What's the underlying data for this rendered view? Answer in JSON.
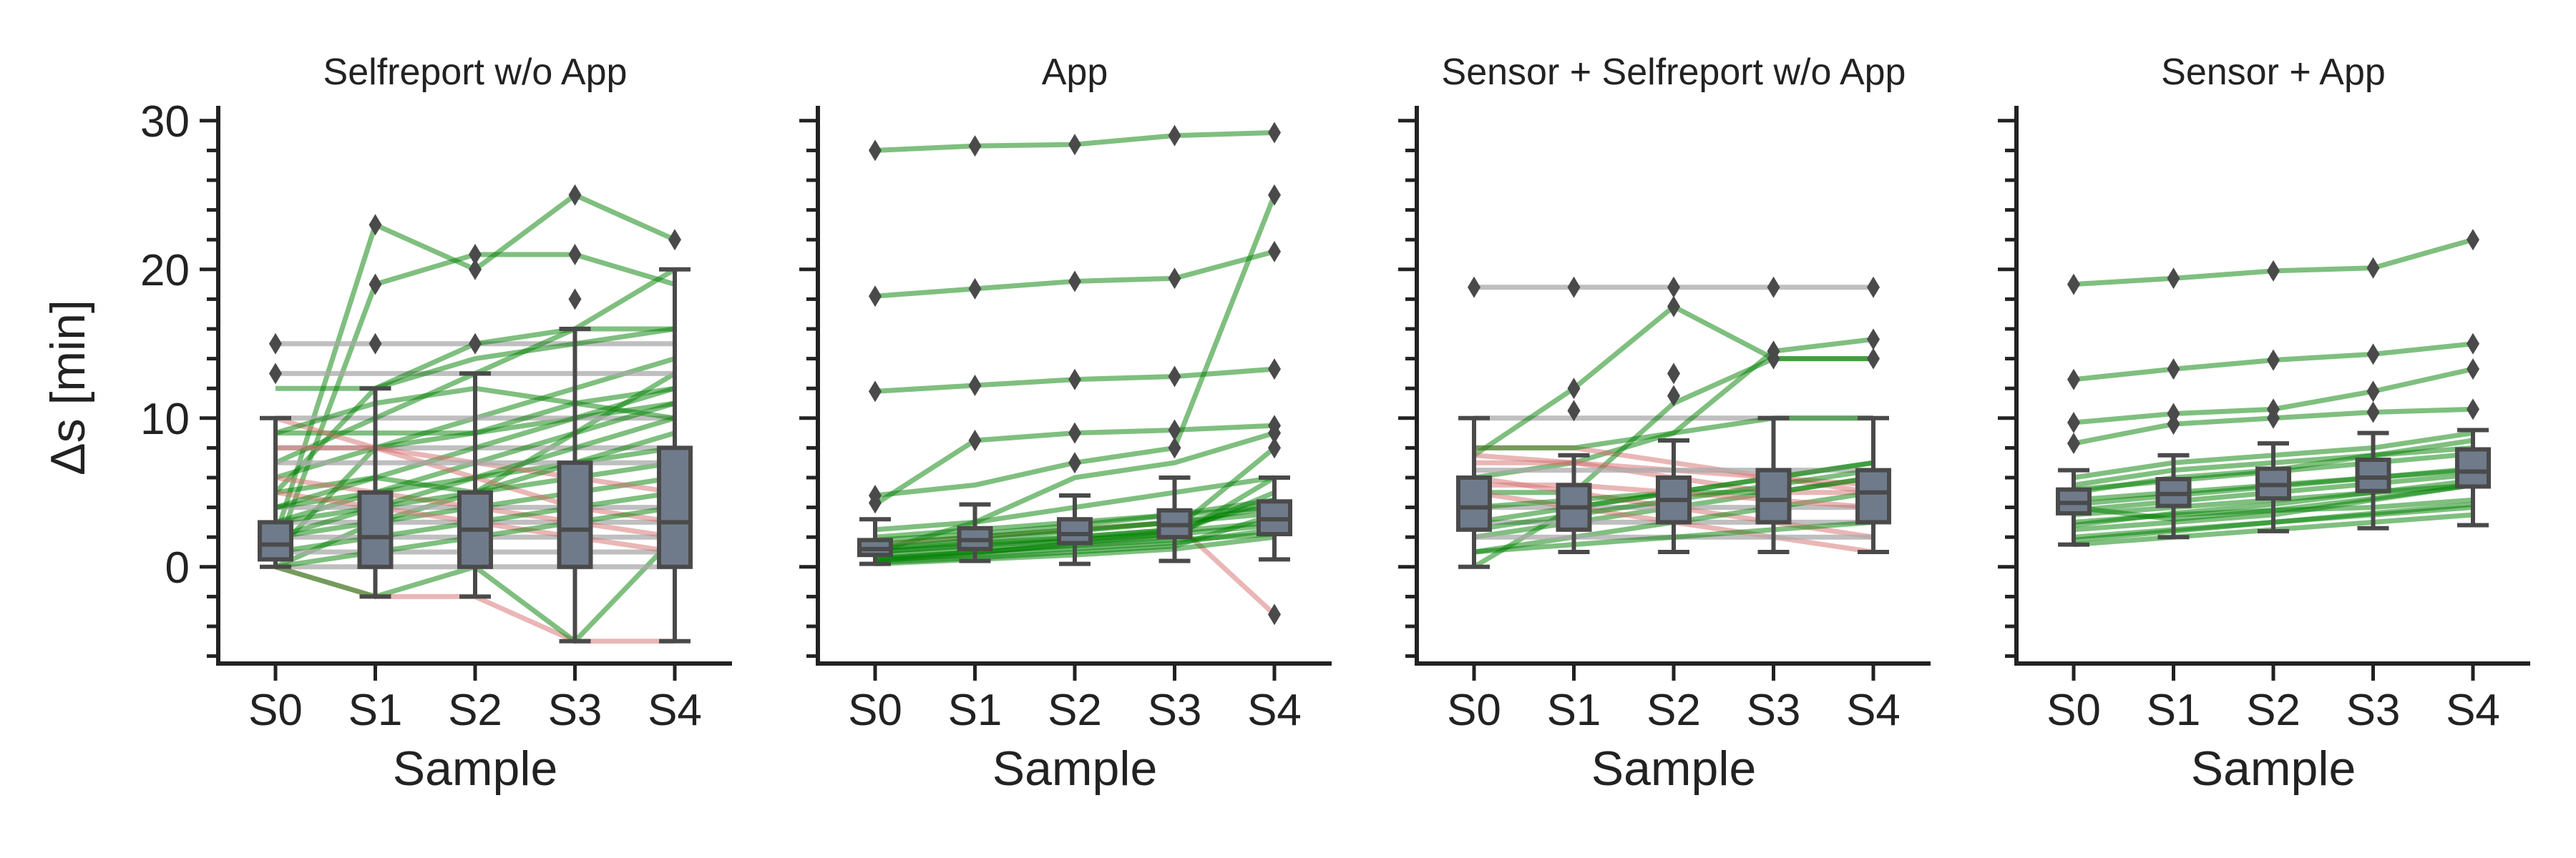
{
  "chart_data": {
    "type": "line",
    "ylabel": "Δs [min]",
    "ylim": [
      -6.5,
      31
    ],
    "yticks": [
      0,
      10,
      20,
      30
    ],
    "yminor_step": 2,
    "xlabel": "Sample",
    "categories": [
      "S0",
      "S1",
      "S2",
      "S3",
      "S4"
    ],
    "line_colors": {
      "increase": "#008000",
      "decrease": "#d66d6d",
      "constant": "#a9a9a9"
    },
    "box_color": "#6f7b8b",
    "box_edge_color": "#4a4a4a",
    "outlier_marker": "diamond",
    "grid": false,
    "panels": [
      {
        "title": "Selfreport w/o App",
        "lines": [
          [
            1,
            8,
            10,
            12,
            14
          ],
          [
            0,
            3,
            5,
            9,
            13
          ],
          [
            2,
            23,
            20,
            25,
            22
          ],
          [
            1,
            19,
            21,
            21,
            19
          ],
          [
            15,
            15,
            15,
            15,
            15
          ],
          [
            13,
            13,
            13,
            13,
            13
          ],
          [
            9,
            9,
            9,
            10,
            11
          ],
          [
            10,
            10,
            10,
            10,
            10
          ],
          [
            8,
            8,
            8,
            8,
            8
          ],
          [
            5,
            6,
            8,
            10,
            12
          ],
          [
            3,
            5,
            7,
            9,
            11
          ],
          [
            0,
            -2,
            -2,
            -5,
            -5
          ],
          [
            0,
            -2,
            0,
            -5,
            2
          ],
          [
            4,
            4,
            4,
            4,
            4
          ],
          [
            3,
            3,
            3,
            3,
            3
          ],
          [
            2,
            2,
            2,
            2,
            2
          ],
          [
            1,
            1,
            1,
            1,
            1
          ],
          [
            0,
            0,
            0,
            0,
            0
          ],
          [
            5,
            12,
            15,
            16,
            16
          ],
          [
            7,
            10,
            13,
            16,
            20
          ],
          [
            6,
            8,
            9,
            11,
            12
          ],
          [
            4,
            5,
            6,
            7,
            8
          ],
          [
            2,
            3,
            4,
            5,
            6
          ],
          [
            8,
            8,
            7,
            6,
            5
          ],
          [
            10,
            8,
            6,
            4,
            3
          ],
          [
            5,
            4,
            3,
            2,
            1
          ],
          [
            6,
            5,
            4,
            3,
            2
          ],
          [
            3,
            4,
            5,
            6,
            7
          ],
          [
            1,
            2,
            3,
            4,
            5
          ],
          [
            0,
            1,
            2,
            3,
            4
          ],
          [
            7,
            7,
            7,
            7,
            7
          ],
          [
            9,
            11,
            12,
            11,
            10
          ],
          [
            12,
            12,
            14,
            15,
            16
          ],
          [
            4,
            6,
            5,
            7,
            9
          ],
          [
            2,
            4,
            6,
            8,
            10
          ]
        ],
        "boxes": [
          {
            "q1": 0.5,
            "median": 1.5,
            "q3": 3,
            "whisker_low": 0,
            "whisker_high": 10,
            "outliers": [
              13,
              15
            ]
          },
          {
            "q1": 0,
            "median": 2,
            "q3": 5,
            "whisker_low": -2,
            "whisker_high": 12,
            "outliers": [
              15,
              19,
              23
            ]
          },
          {
            "q1": 0,
            "median": 2.5,
            "q3": 5,
            "whisker_low": -2,
            "whisker_high": 13,
            "outliers": [
              15,
              20,
              21
            ]
          },
          {
            "q1": 0,
            "median": 2.5,
            "q3": 7,
            "whisker_low": -5,
            "whisker_high": 16,
            "outliers": [
              18,
              21,
              25
            ]
          },
          {
            "q1": 0,
            "median": 3,
            "q3": 8,
            "whisker_low": -5,
            "whisker_high": 20,
            "outliers": [
              22
            ]
          }
        ]
      },
      {
        "title": "App",
        "lines": [
          [
            28,
            28.3,
            28.4,
            29,
            29.2
          ],
          [
            18.2,
            18.7,
            19.2,
            19.4,
            21.2
          ],
          [
            11.8,
            12.2,
            12.6,
            12.8,
            13.3
          ],
          [
            4.8,
            5.5,
            7,
            8,
            25
          ],
          [
            4.2,
            8.5,
            9,
            9.2,
            9.5
          ],
          [
            1,
            3,
            6,
            7,
            9
          ],
          [
            1,
            1.5,
            2,
            2.5,
            8
          ],
          [
            1.5,
            2,
            2.5,
            3,
            -3.2
          ],
          [
            0.5,
            1,
            1.5,
            2,
            6
          ],
          [
            0.8,
            1.2,
            1.8,
            2.2,
            5
          ],
          [
            1.2,
            1.6,
            2,
            2.5,
            4.5
          ],
          [
            1.5,
            2,
            2.5,
            3,
            4
          ],
          [
            0.3,
            0.6,
            1,
            1.4,
            3.5
          ],
          [
            1,
            1.4,
            1.8,
            2.4,
            3
          ],
          [
            0.5,
            0.8,
            1.2,
            1.6,
            2.5
          ],
          [
            2,
            2.5,
            3,
            3.5,
            4
          ],
          [
            0.2,
            0.5,
            0.8,
            1.2,
            2
          ],
          [
            1.8,
            2.2,
            2.8,
            3.5,
            4.5
          ],
          [
            0.6,
            1,
            1.4,
            1.8,
            2.2
          ],
          [
            1.2,
            1.8,
            2.4,
            3,
            3.6
          ],
          [
            2.5,
            3,
            4,
            5,
            6
          ],
          [
            0.4,
            0.9,
            1.6,
            2.2,
            2.8
          ]
        ],
        "boxes": [
          {
            "q1": 0.8,
            "median": 1.2,
            "q3": 1.8,
            "whisker_low": 0.2,
            "whisker_high": 3.2,
            "outliers": [
              4.3,
              4.8,
              11.8,
              18.2,
              28
            ]
          },
          {
            "q1": 1.2,
            "median": 1.8,
            "q3": 2.6,
            "whisker_low": 0.4,
            "whisker_high": 4.2,
            "outliers": [
              8.5,
              12.2,
              18.7,
              28.3
            ]
          },
          {
            "q1": 1.6,
            "median": 2.2,
            "q3": 3.2,
            "whisker_low": 0.2,
            "whisker_high": 4.8,
            "outliers": [
              7,
              9,
              12.6,
              19.2,
              28.4
            ]
          },
          {
            "q1": 2,
            "median": 2.8,
            "q3": 3.8,
            "whisker_low": 0.4,
            "whisker_high": 6,
            "outliers": [
              8,
              9.2,
              12.8,
              19.4,
              29
            ]
          },
          {
            "q1": 2.2,
            "median": 3.2,
            "q3": 4.4,
            "whisker_low": 0.5,
            "whisker_high": 6,
            "outliers": [
              -3.2,
              8,
              9,
              9.5,
              13.3,
              21.2,
              25,
              29.2
            ]
          }
        ]
      },
      {
        "title": "Sensor + Selfreport w/o App",
        "lines": [
          [
            18.8,
            18.8,
            18.8,
            18.8,
            18.8
          ],
          [
            10,
            10,
            10,
            10,
            10
          ],
          [
            7.5,
            12,
            17.5,
            14,
            14
          ],
          [
            6,
            7,
            9,
            14.5,
            15.3
          ],
          [
            7,
            7,
            6,
            5,
            5
          ],
          [
            8,
            8,
            7,
            6,
            5
          ],
          [
            5,
            5,
            11,
            14,
            14
          ],
          [
            0,
            4,
            5,
            6,
            7
          ],
          [
            2,
            3,
            4,
            5,
            6
          ],
          [
            4,
            4,
            4,
            4,
            4
          ],
          [
            3,
            3,
            3,
            3,
            3
          ],
          [
            6,
            5,
            4,
            3,
            2
          ],
          [
            5,
            4,
            3,
            2,
            1
          ],
          [
            7.5,
            7,
            6.5,
            6,
            5.5
          ],
          [
            1,
            2,
            3,
            4,
            5
          ],
          [
            2,
            2,
            2,
            2,
            2
          ],
          [
            6.5,
            6.5,
            6.5,
            6.5,
            6.5
          ],
          [
            3,
            4,
            5,
            5,
            6
          ],
          [
            4,
            4.5,
            5,
            6,
            7
          ],
          [
            8,
            8,
            9,
            10,
            10
          ],
          [
            1,
            1.5,
            2,
            2.5,
            3
          ],
          [
            5.5,
            5.5,
            5,
            4.5,
            4
          ],
          [
            2.5,
            3.5,
            4.5,
            5.5,
            6.5
          ]
        ],
        "boxes": [
          {
            "q1": 2.5,
            "median": 4,
            "q3": 6,
            "whisker_low": 0,
            "whisker_high": 10,
            "outliers": [
              18.8
            ]
          },
          {
            "q1": 2.5,
            "median": 4,
            "q3": 5.5,
            "whisker_low": 1,
            "whisker_high": 7.5,
            "outliers": [
              10.5,
              12,
              18.8
            ]
          },
          {
            "q1": 3,
            "median": 4.5,
            "q3": 6,
            "whisker_low": 1,
            "whisker_high": 8.5,
            "outliers": [
              11.5,
              13,
              17.5,
              18.8
            ]
          },
          {
            "q1": 3,
            "median": 4.5,
            "q3": 6.5,
            "whisker_low": 1,
            "whisker_high": 10,
            "outliers": [
              14,
              14.5,
              18.8
            ]
          },
          {
            "q1": 3,
            "median": 5,
            "q3": 6.5,
            "whisker_low": 1,
            "whisker_high": 10,
            "outliers": [
              14,
              15.3,
              18.8
            ]
          }
        ]
      },
      {
        "title": "Sensor + App",
        "lines": [
          [
            19,
            19.4,
            19.9,
            20.1,
            22
          ],
          [
            12.6,
            13.3,
            13.9,
            14.3,
            15
          ],
          [
            9.7,
            10.3,
            10.6,
            11.8,
            13.3
          ],
          [
            8.3,
            9.6,
            10,
            10.4,
            10.6
          ],
          [
            4.5,
            5,
            5.5,
            6,
            6.5
          ],
          [
            3.5,
            4,
            4.5,
            5,
            5.5
          ],
          [
            2,
            2.5,
            3,
            3.5,
            4
          ],
          [
            5.5,
            6.5,
            7,
            7.5,
            8
          ],
          [
            3,
            3.5,
            3.8,
            4,
            4.5
          ],
          [
            4,
            3.2,
            3.8,
            4.6,
            5.5
          ],
          [
            1.5,
            2,
            2.5,
            3,
            3.5
          ],
          [
            5,
            6,
            6.5,
            7.5,
            8.5
          ],
          [
            2.5,
            3,
            3.5,
            4.5,
            5.5
          ],
          [
            4.2,
            4.8,
            5.4,
            6,
            6.6
          ],
          [
            6,
            7,
            7.5,
            8,
            9
          ],
          [
            3.8,
            4.4,
            5,
            5.6,
            6.2
          ],
          [
            1.8,
            2.4,
            3,
            3.6,
            4.2
          ],
          [
            5.2,
            5.8,
            6.4,
            7,
            7.6
          ],
          [
            2.8,
            3.6,
            4.2,
            5,
            5.8
          ]
        ],
        "boxes": [
          {
            "q1": 3.6,
            "median": 4.3,
            "q3": 5.2,
            "whisker_low": 1.5,
            "whisker_high": 6.5,
            "outliers": [
              8.3,
              9.7,
              12.6,
              19
            ]
          },
          {
            "q1": 4.1,
            "median": 4.9,
            "q3": 5.9,
            "whisker_low": 2,
            "whisker_high": 7.5,
            "outliers": [
              9.6,
              10.3,
              13.3,
              19.4
            ]
          },
          {
            "q1": 4.6,
            "median": 5.5,
            "q3": 6.6,
            "whisker_low": 2.4,
            "whisker_high": 8.3,
            "outliers": [
              10,
              10.6,
              13.9,
              19.9
            ]
          },
          {
            "q1": 5.1,
            "median": 6,
            "q3": 7.2,
            "whisker_low": 2.6,
            "whisker_high": 9,
            "outliers": [
              10.4,
              11.8,
              14.3,
              20.1
            ]
          },
          {
            "q1": 5.4,
            "median": 6.4,
            "q3": 7.9,
            "whisker_low": 2.8,
            "whisker_high": 9.2,
            "outliers": [
              10.6,
              13.3,
              15,
              22
            ]
          }
        ]
      }
    ]
  }
}
